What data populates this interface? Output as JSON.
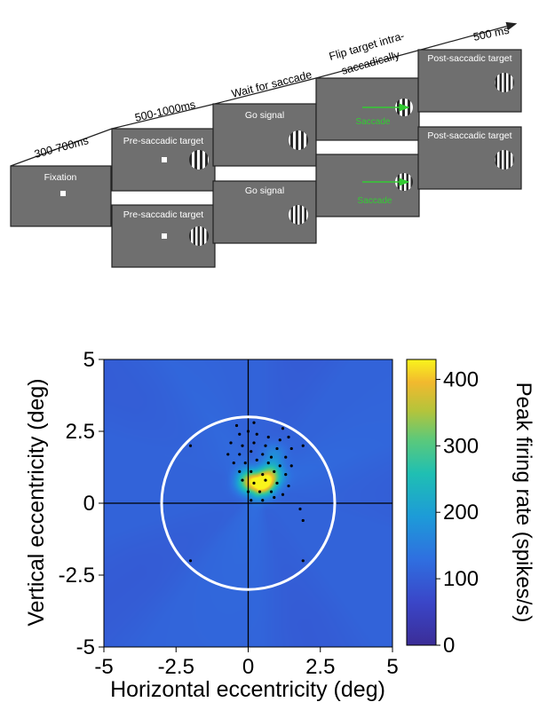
{
  "timeline": {
    "arrow_label": "500 ms",
    "stage_labels": {
      "t1": "300-700ms",
      "t2": "500-1000ms",
      "t3": "Wait for saccade",
      "t4a": "Flip target intra-",
      "t4b": "saccadically"
    },
    "screens": {
      "fixation": "Fixation",
      "pre_top": "Pre-saccadic target",
      "pre_bottom": "Pre-saccadic target",
      "go_top": "Go signal",
      "go_bottom": "Go signal",
      "sac_top": "Saccade",
      "sac_bottom": "Saccade",
      "post_top": "Post-saccadic target",
      "post_bottom": "Post-saccadic target"
    }
  },
  "chart_data": {
    "type": "heatmap",
    "xlabel": "Horizontal eccentricity (deg)",
    "ylabel": "Vertical eccentricity (deg)",
    "colorbar_label": "Peak firing rate (spikes/s)",
    "xlim": [
      -5,
      5
    ],
    "ylim": [
      -5,
      5
    ],
    "clim": [
      0,
      430
    ],
    "xticks": [
      -5,
      -2.5,
      0,
      2.5,
      5
    ],
    "xtick_labels": [
      "-5",
      "-2.5",
      "0",
      "2.5",
      "5"
    ],
    "yticks": [
      5,
      2.5,
      0,
      -2.5,
      -5
    ],
    "ytick_labels": [
      "5",
      "2.5",
      "0",
      "-2.5",
      "-5"
    ],
    "cticks": [
      400,
      300,
      200,
      100,
      0
    ],
    "ctick_labels": [
      "400",
      "300",
      "200",
      "100",
      "0"
    ],
    "circle_radius_deg": 3,
    "background_rate": 110,
    "hotspots": [
      {
        "x": 0.5,
        "y": 0.65,
        "peak": 420
      },
      {
        "x": 0.0,
        "y": 0.75,
        "peak": 330
      },
      {
        "x": 0.8,
        "y": 1.0,
        "peak": 300
      },
      {
        "x": 0.9,
        "y": 1.7,
        "peak": 170
      }
    ],
    "points": [
      [
        -2.0,
        2.0
      ],
      [
        -2.0,
        -2.0
      ],
      [
        1.9,
        -0.6
      ],
      [
        1.8,
        -0.2
      ],
      [
        1.9,
        -2.0
      ],
      [
        1.9,
        2.0
      ],
      [
        -0.3,
        2.4
      ],
      [
        0.0,
        2.5
      ],
      [
        0.3,
        2.4
      ],
      [
        0.7,
        2.3
      ],
      [
        1.1,
        2.2
      ],
      [
        1.4,
        2.3
      ],
      [
        -0.6,
        2.1
      ],
      [
        -0.2,
        2.0
      ],
      [
        0.2,
        2.1
      ],
      [
        0.6,
        2.0
      ],
      [
        1.0,
        1.9
      ],
      [
        1.5,
        1.9
      ],
      [
        -0.7,
        1.7
      ],
      [
        -0.3,
        1.7
      ],
      [
        0.1,
        1.8
      ],
      [
        0.5,
        1.7
      ],
      [
        0.8,
        1.6
      ],
      [
        1.3,
        1.6
      ],
      [
        -0.5,
        1.4
      ],
      [
        -0.1,
        1.4
      ],
      [
        0.3,
        1.5
      ],
      [
        0.7,
        1.4
      ],
      [
        1.1,
        1.3
      ],
      [
        1.5,
        1.3
      ],
      [
        -0.3,
        1.1
      ],
      [
        0.1,
        1.1
      ],
      [
        0.5,
        1.0
      ],
      [
        0.9,
        1.1
      ],
      [
        1.3,
        1.0
      ],
      [
        -0.2,
        0.8
      ],
      [
        0.2,
        0.7
      ],
      [
        0.6,
        0.8
      ],
      [
        1.0,
        0.7
      ],
      [
        1.4,
        0.6
      ],
      [
        0.0,
        0.4
      ],
      [
        0.4,
        0.4
      ],
      [
        0.8,
        0.4
      ],
      [
        1.2,
        0.3
      ],
      [
        0.1,
        0.1
      ],
      [
        0.5,
        0.1
      ],
      [
        0.9,
        0.2
      ],
      [
        -0.4,
        2.7
      ],
      [
        0.2,
        2.8
      ],
      [
        1.2,
        2.6
      ]
    ]
  }
}
